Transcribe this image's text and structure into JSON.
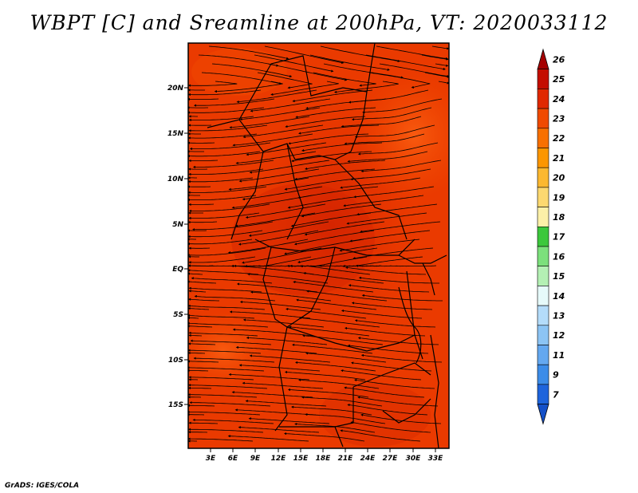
{
  "title": "WBPT [C] and Sreamline at 200hPa, VT: 2020033112",
  "footer": "GrADS: IGES/COLA",
  "map": {
    "lat_ticks": [
      "20N",
      "15N",
      "10N",
      "5N",
      "EQ",
      "5S",
      "10S",
      "15S"
    ],
    "lon_ticks": [
      "3E",
      "6E",
      "9E",
      "12E",
      "15E",
      "18E",
      "21E",
      "24E",
      "27E",
      "30E",
      "33E"
    ]
  },
  "colorbar": {
    "labels": [
      "26",
      "25",
      "24",
      "23",
      "22",
      "21",
      "20",
      "19",
      "18",
      "17",
      "16",
      "15",
      "14",
      "13",
      "12",
      "11",
      "9",
      "7"
    ],
    "colors": [
      "#a50000",
      "#c40e00",
      "#e02800",
      "#f04a00",
      "#f87000",
      "#fc9600",
      "#fcb830",
      "#fcd870",
      "#fcf0a8",
      "#3cc83c",
      "#7ce07c",
      "#b4f0b4",
      "#e6fafa",
      "#b4dcfa",
      "#8cc4f4",
      "#64a8f0",
      "#3c8ce8",
      "#1e64dc",
      "#1450c8"
    ]
  }
}
